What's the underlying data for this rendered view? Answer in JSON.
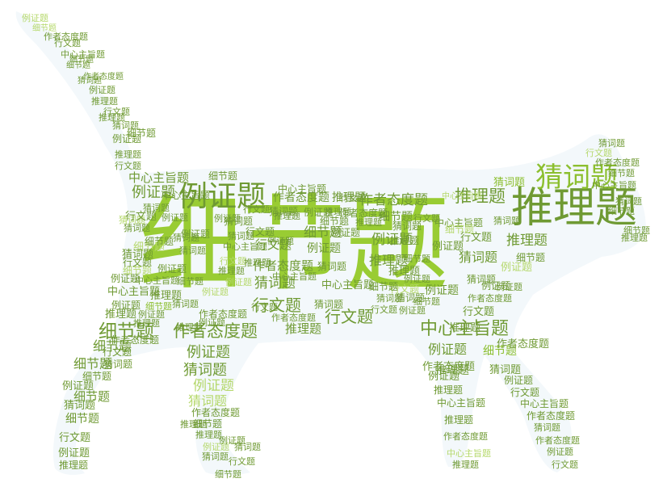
{
  "palette": {
    "dark": "#6f9a33",
    "mid": "#8cbf2f",
    "bright": "#99cc33",
    "light": "#b5d86b",
    "pale": "#c9e39a",
    "shape": "#f3f8fb"
  },
  "words": [
    {
      "text": "细节题",
      "tone": "bright"
    },
    {
      "text": "推理题",
      "tone": "dark"
    },
    {
      "text": "猜词题",
      "tone": "mid"
    },
    {
      "text": "例证题",
      "tone": "dark"
    },
    {
      "text": "推理题",
      "tone": "dark"
    },
    {
      "text": "作者态度题",
      "tone": "dark"
    },
    {
      "text": "中心主旨题",
      "tone": "dark"
    },
    {
      "text": "细节题",
      "tone": "dark"
    },
    {
      "text": "作者态度题",
      "tone": "dark"
    },
    {
      "text": "推理题",
      "tone": "dark"
    },
    {
      "text": "行文题",
      "tone": "dark"
    },
    {
      "text": "中心主旨题",
      "tone": "dark"
    },
    {
      "text": "例证题",
      "tone": "dark"
    },
    {
      "text": "细节题",
      "tone": "dark"
    },
    {
      "text": "猜词题",
      "tone": "dark"
    },
    {
      "text": "行文题",
      "tone": "dark"
    },
    {
      "text": "细节题",
      "tone": "dark"
    },
    {
      "text": "作者态度题",
      "tone": "dark"
    },
    {
      "text": "推理题",
      "tone": "dark"
    },
    {
      "text": "例证题",
      "tone": "dark"
    },
    {
      "text": "中心主旨题",
      "tone": "dark"
    },
    {
      "text": "细节题",
      "tone": "mid"
    },
    {
      "text": "作者态度题",
      "tone": "dark"
    },
    {
      "text": "例证题",
      "tone": "dark"
    },
    {
      "text": "推理题",
      "tone": "dark"
    },
    {
      "text": "细节题",
      "tone": "dark"
    },
    {
      "text": "猜词题",
      "tone": "dark"
    },
    {
      "text": "行文题",
      "tone": "dark"
    },
    {
      "text": "细节题",
      "tone": "dark"
    },
    {
      "text": "作者态度题",
      "tone": "dark"
    },
    {
      "text": "细节题",
      "tone": "dark"
    },
    {
      "text": "行文题",
      "tone": "dark"
    },
    {
      "text": "猜词题",
      "tone": "dark"
    },
    {
      "text": "例证题",
      "tone": "dark"
    },
    {
      "text": "推理题",
      "tone": "dark"
    },
    {
      "text": "细节题",
      "tone": "dark"
    },
    {
      "text": "例证题",
      "tone": "light"
    },
    {
      "text": "行文题",
      "tone": "dark"
    },
    {
      "text": "猜词题",
      "tone": "mid"
    },
    {
      "text": "猜词题",
      "tone": "dark"
    },
    {
      "text": "推理题",
      "tone": "dark"
    },
    {
      "text": "行文题",
      "tone": "dark"
    },
    {
      "text": "猜词题",
      "tone": "dark"
    },
    {
      "text": "例证题",
      "tone": "dark"
    },
    {
      "text": "例证题",
      "tone": "dark"
    },
    {
      "text": "中心主旨题",
      "tone": "dark"
    },
    {
      "text": "例证题",
      "tone": "dark"
    },
    {
      "text": "细节题",
      "tone": "light"
    },
    {
      "text": "推理题",
      "tone": "dark"
    },
    {
      "text": "中心主旨题",
      "tone": "light"
    },
    {
      "text": "作者态度题",
      "tone": "dark"
    },
    {
      "text": "例证题",
      "tone": "dark"
    },
    {
      "text": "细节题",
      "tone": "dark"
    },
    {
      "text": "推理题",
      "tone": "dark"
    },
    {
      "text": "例证题",
      "tone": "dark"
    },
    {
      "text": "猜词题",
      "tone": "dark"
    },
    {
      "text": "行文题",
      "tone": "light"
    },
    {
      "text": "细节题",
      "tone": "dark"
    },
    {
      "text": "猜词题",
      "tone": "dark"
    },
    {
      "text": "例证题",
      "tone": "dark"
    },
    {
      "text": "行文题",
      "tone": "dark"
    },
    {
      "text": "例证题",
      "tone": "dark"
    },
    {
      "text": "细节题",
      "tone": "dark"
    },
    {
      "text": "推理题",
      "tone": "dark"
    },
    {
      "text": "细节题",
      "tone": "dark"
    },
    {
      "text": "猜词题",
      "tone": "dark"
    },
    {
      "text": "推理题",
      "tone": "dark"
    },
    {
      "text": "中心主旨题",
      "tone": "dark"
    },
    {
      "text": "例证题",
      "tone": "dark"
    },
    {
      "text": "作者态度题",
      "tone": "dark"
    },
    {
      "text": "行文题",
      "tone": "dark"
    },
    {
      "text": "猜词题",
      "tone": "dark"
    },
    {
      "text": "中心主旨题",
      "tone": "dark"
    },
    {
      "text": "例证题",
      "tone": "dark"
    },
    {
      "text": "行文题",
      "tone": "dark"
    },
    {
      "text": "推理题",
      "tone": "dark"
    },
    {
      "text": "猜词题",
      "tone": "dark"
    },
    {
      "text": "中心主旨题",
      "tone": "dark"
    },
    {
      "text": "作者态度题",
      "tone": "dark"
    },
    {
      "text": "猜词题",
      "tone": "dark"
    },
    {
      "text": "推理题",
      "tone": "dark"
    },
    {
      "text": "例证题",
      "tone": "dark"
    },
    {
      "text": "中心主旨题",
      "tone": "dark"
    },
    {
      "text": "细节题",
      "tone": "light"
    },
    {
      "text": "细节题",
      "tone": "light"
    },
    {
      "text": "推理题",
      "tone": "dark"
    },
    {
      "text": "猜词题",
      "tone": "light"
    },
    {
      "text": "例证题",
      "tone": "dark"
    },
    {
      "text": "行文题",
      "tone": "dark"
    },
    {
      "text": "细节题",
      "tone": "dark"
    },
    {
      "text": "例证题",
      "tone": "dark"
    },
    {
      "text": "猜词题",
      "tone": "dark"
    },
    {
      "text": "例证题",
      "tone": "dark"
    },
    {
      "text": "猜词题",
      "tone": "dark"
    },
    {
      "text": "例证题",
      "tone": "dark"
    },
    {
      "text": "细节题",
      "tone": "mid"
    },
    {
      "text": "猜词题",
      "tone": "dark"
    },
    {
      "text": "猜词题",
      "tone": "dark"
    },
    {
      "text": "推理题",
      "tone": "dark"
    },
    {
      "text": "例证题",
      "tone": "dark"
    },
    {
      "text": "中心主旨题",
      "tone": "dark"
    },
    {
      "text": "行文题",
      "tone": "dark"
    },
    {
      "text": "猜词题",
      "tone": "dark"
    },
    {
      "text": "例证题",
      "tone": "dark"
    },
    {
      "text": "猜词题",
      "tone": "dark"
    },
    {
      "text": "推理题",
      "tone": "dark"
    },
    {
      "text": "中心主旨题",
      "tone": "dark"
    },
    {
      "text": "行文题",
      "tone": "light"
    },
    {
      "text": "例证题",
      "tone": "light"
    },
    {
      "text": "猜词题",
      "tone": "dark"
    },
    {
      "text": "例证题",
      "tone": "light"
    },
    {
      "text": "推理题",
      "tone": "dark"
    },
    {
      "text": "细节题",
      "tone": "dark"
    },
    {
      "text": "行文题",
      "tone": "dark"
    },
    {
      "text": "猜词题",
      "tone": "dark"
    },
    {
      "text": "例证题",
      "tone": "dark"
    },
    {
      "text": "推理题",
      "tone": "dark"
    },
    {
      "text": "行文题",
      "tone": "dark"
    },
    {
      "text": "例证题",
      "tone": "dark"
    },
    {
      "text": "细节题",
      "tone": "dark"
    },
    {
      "text": "推理题",
      "tone": "dark"
    },
    {
      "text": "例证题",
      "tone": "light"
    },
    {
      "text": "猜词题",
      "tone": "light"
    },
    {
      "text": "作者态度题",
      "tone": "dark"
    },
    {
      "text": "细节题",
      "tone": "dark"
    },
    {
      "text": "推理题",
      "tone": "dark"
    },
    {
      "text": "例证题",
      "tone": "light"
    },
    {
      "text": "猜词题",
      "tone": "dark"
    },
    {
      "text": "细节题",
      "tone": "dark"
    },
    {
      "text": "行文题",
      "tone": "dark"
    },
    {
      "text": "猜词题",
      "tone": "dark"
    },
    {
      "text": "例证题",
      "tone": "dark"
    },
    {
      "text": "推理题",
      "tone": "dark"
    },
    {
      "text": "例证题",
      "tone": "dark"
    },
    {
      "text": "猜词题",
      "tone": "dark"
    },
    {
      "text": "细节题",
      "tone": "dark"
    },
    {
      "text": "行文题",
      "tone": "dark"
    },
    {
      "text": "例证题",
      "tone": "dark"
    },
    {
      "text": "推理题",
      "tone": "dark"
    },
    {
      "text": "细节题",
      "tone": "dark"
    },
    {
      "text": "猜词题",
      "tone": "dark"
    },
    {
      "text": "作者态度题",
      "tone": "dark"
    },
    {
      "text": "行文题",
      "tone": "dark"
    },
    {
      "text": "细节题",
      "tone": "dark"
    },
    {
      "text": "例证题",
      "tone": "dark"
    },
    {
      "text": "推理题",
      "tone": "dark"
    },
    {
      "text": "猜词题",
      "tone": "dark"
    },
    {
      "text": "行文题",
      "tone": "dark"
    },
    {
      "text": "推理题",
      "tone": "dark"
    },
    {
      "text": "例证题",
      "tone": "dark"
    },
    {
      "text": "作者态度题",
      "tone": "dark"
    },
    {
      "text": "细节题",
      "tone": "dark"
    },
    {
      "text": "中心主旨题",
      "tone": "dark"
    },
    {
      "text": "行文题",
      "tone": "dark"
    },
    {
      "text": "细节题",
      "tone": "light"
    },
    {
      "text": "例证题",
      "tone": "light"
    },
    {
      "text": "作者态度题",
      "tone": "dark"
    },
    {
      "text": "细节题",
      "tone": "dark"
    },
    {
      "text": "猜词题",
      "tone": "dark"
    },
    {
      "text": "推理题",
      "tone": "dark"
    },
    {
      "text": "行文题",
      "tone": "dark"
    },
    {
      "text": "作者态度题",
      "tone": "dark"
    },
    {
      "text": "例证题",
      "tone": "dark"
    },
    {
      "text": "推理题",
      "tone": "dark"
    },
    {
      "text": "中心主旨题",
      "tone": "dark"
    },
    {
      "text": "推理题",
      "tone": "dark"
    },
    {
      "text": "作者态度题",
      "tone": "dark"
    },
    {
      "text": "中心主旨题",
      "tone": "light"
    },
    {
      "text": "推理题",
      "tone": "dark"
    },
    {
      "text": "猜词题",
      "tone": "dark"
    },
    {
      "text": "例证题",
      "tone": "dark"
    },
    {
      "text": "行文题",
      "tone": "dark"
    },
    {
      "text": "中心主旨题",
      "tone": "dark"
    },
    {
      "text": "作者态度题",
      "tone": "dark"
    },
    {
      "text": "猜词题",
      "tone": "dark"
    },
    {
      "text": "作者态度题",
      "tone": "dark"
    },
    {
      "text": "例证题",
      "tone": "dark"
    },
    {
      "text": "行文题",
      "tone": "dark"
    },
    {
      "text": "作者态度题",
      "tone": "dark"
    },
    {
      "text": "行文题",
      "tone": "light"
    },
    {
      "text": "猜词题",
      "tone": "dark"
    },
    {
      "text": "作者态度题",
      "tone": "dark"
    },
    {
      "text": "猜词题",
      "tone": "dark"
    },
    {
      "text": "细节题",
      "tone": "dark"
    },
    {
      "text": "细节题",
      "tone": "dark"
    },
    {
      "text": "推理题",
      "tone": "dark"
    },
    {
      "text": "中心主旨题",
      "tone": "dark"
    },
    {
      "text": "细节题",
      "tone": "dark"
    },
    {
      "text": "推理题",
      "tone": "dark"
    },
    {
      "text": "细节题",
      "tone": "light"
    },
    {
      "text": "作者态度题",
      "tone": "dark"
    },
    {
      "text": "推理题",
      "tone": "dark"
    },
    {
      "text": "中心主旨题",
      "tone": "dark"
    },
    {
      "text": "猜词题",
      "tone": "dark"
    },
    {
      "text": "细节题",
      "tone": "light"
    }
  ]
}
